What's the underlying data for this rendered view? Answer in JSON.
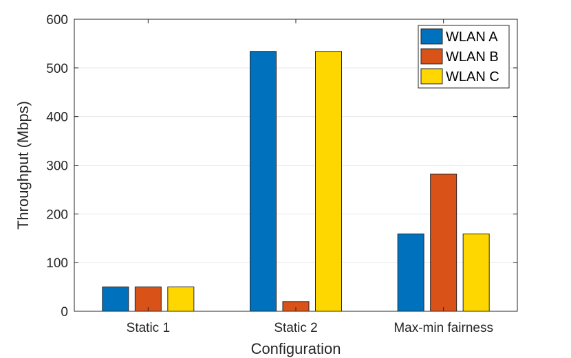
{
  "chart_data": {
    "type": "bar",
    "title": "",
    "xlabel": "Configuration",
    "ylabel": "Throughput (Mbps)",
    "categories": [
      "Static 1",
      "Static 2",
      "Max-min fairness"
    ],
    "ylim": [
      0,
      600
    ],
    "yticks": [
      0,
      100,
      200,
      300,
      400,
      500,
      600
    ],
    "ytick_labels": [
      "0",
      "100",
      "200",
      "300",
      "400",
      "500",
      "600"
    ],
    "grid": true,
    "legend_position": "top-right",
    "series": [
      {
        "name": "WLAN A",
        "color": "#0072BD",
        "values": [
          50,
          534,
          159
        ]
      },
      {
        "name": "WLAN B",
        "color": "#D95319",
        "values": [
          50,
          20,
          282
        ]
      },
      {
        "name": "WLAN C",
        "color": "#FFD700",
        "values": [
          50,
          534,
          159
        ]
      }
    ]
  }
}
